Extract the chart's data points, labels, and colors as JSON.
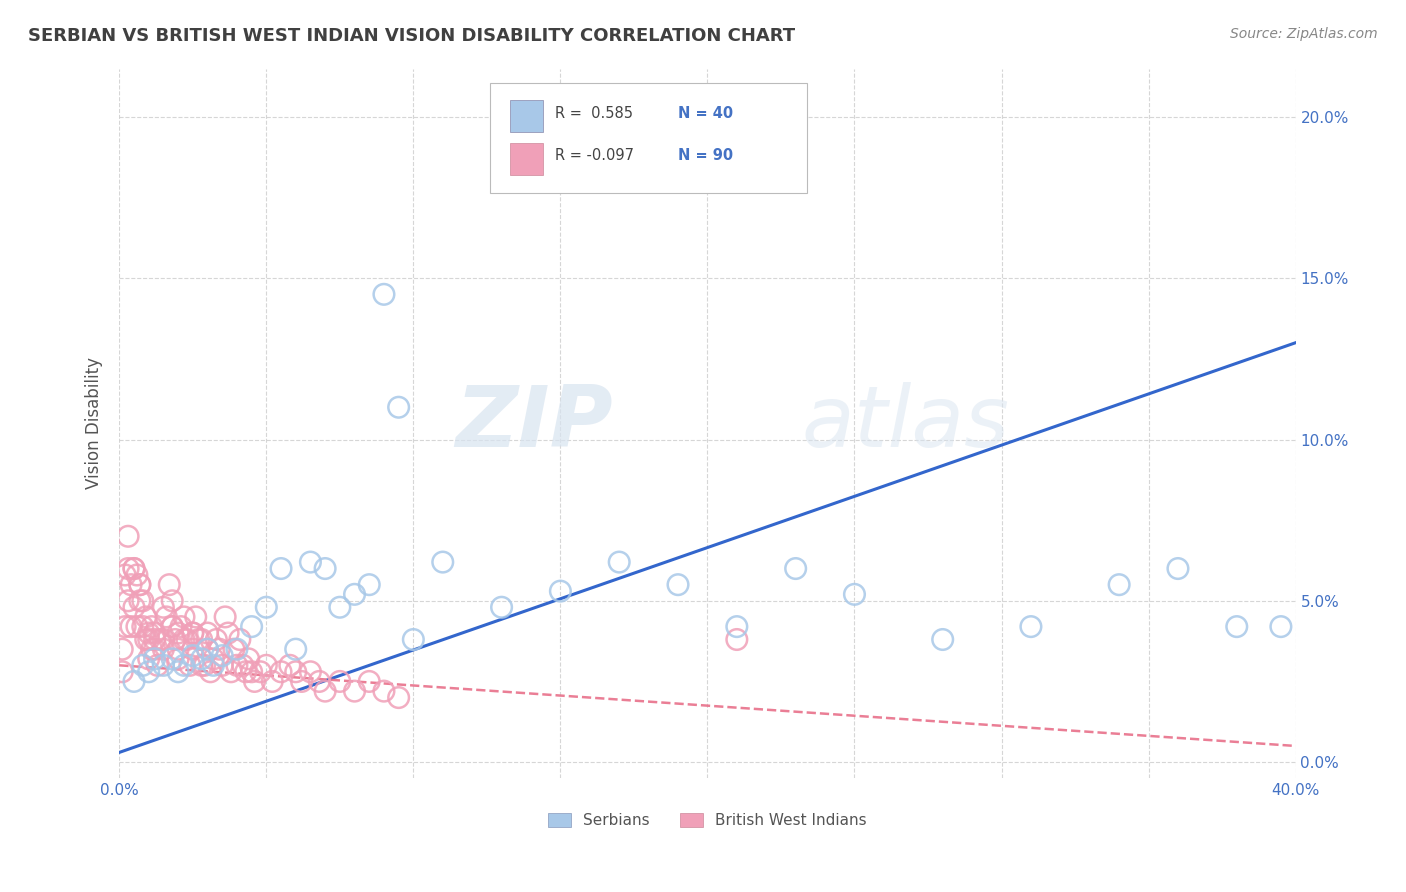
{
  "title": "SERBIAN VS BRITISH WEST INDIAN VISION DISABILITY CORRELATION CHART",
  "source": "Source: ZipAtlas.com",
  "ylabel": "Vision Disability",
  "xlim": [
    0.0,
    0.4
  ],
  "ylim": [
    -0.005,
    0.215
  ],
  "xticks": [
    0.0,
    0.05,
    0.1,
    0.15,
    0.2,
    0.25,
    0.3,
    0.35,
    0.4
  ],
  "xtick_labels": [
    "0.0%",
    "",
    "",
    "",
    "",
    "",
    "",
    "",
    "40.0%"
  ],
  "yticks": [
    0.0,
    0.05,
    0.1,
    0.15,
    0.2
  ],
  "ytick_labels_right": [
    "0.0%",
    "5.0%",
    "10.0%",
    "15.0%",
    "20.0%"
  ],
  "serbian_color": "#a8c8e8",
  "british_color": "#f0a0b8",
  "trend_serbian_color": "#3366cc",
  "trend_british_color": "#e8708a",
  "legend_serbian_label": "Serbians",
  "legend_british_label": "British West Indians",
  "R_serbian": 0.585,
  "N_serbian": 40,
  "R_british": -0.097,
  "N_british": 90,
  "serbian_x": [
    0.005,
    0.008,
    0.01,
    0.012,
    0.015,
    0.018,
    0.02,
    0.022,
    0.025,
    0.028,
    0.03,
    0.032,
    0.035,
    0.04,
    0.045,
    0.05,
    0.055,
    0.06,
    0.065,
    0.07,
    0.075,
    0.08,
    0.085,
    0.09,
    0.095,
    0.1,
    0.11,
    0.13,
    0.15,
    0.17,
    0.19,
    0.21,
    0.23,
    0.25,
    0.28,
    0.31,
    0.34,
    0.36,
    0.38,
    0.395
  ],
  "serbian_y": [
    0.025,
    0.03,
    0.028,
    0.032,
    0.03,
    0.032,
    0.028,
    0.03,
    0.033,
    0.032,
    0.035,
    0.03,
    0.033,
    0.035,
    0.042,
    0.048,
    0.06,
    0.035,
    0.062,
    0.06,
    0.048,
    0.052,
    0.055,
    0.145,
    0.11,
    0.038,
    0.062,
    0.048,
    0.053,
    0.062,
    0.055,
    0.042,
    0.06,
    0.052,
    0.038,
    0.042,
    0.055,
    0.06,
    0.042,
    0.042
  ],
  "british_x": [
    0.001,
    0.001,
    0.002,
    0.002,
    0.003,
    0.003,
    0.004,
    0.004,
    0.005,
    0.005,
    0.006,
    0.006,
    0.007,
    0.007,
    0.008,
    0.008,
    0.009,
    0.009,
    0.01,
    0.01,
    0.011,
    0.011,
    0.012,
    0.012,
    0.013,
    0.014,
    0.015,
    0.015,
    0.016,
    0.017,
    0.018,
    0.018,
    0.019,
    0.02,
    0.02,
    0.021,
    0.022,
    0.022,
    0.023,
    0.024,
    0.025,
    0.025,
    0.026,
    0.027,
    0.028,
    0.028,
    0.029,
    0.03,
    0.03,
    0.031,
    0.032,
    0.033,
    0.034,
    0.035,
    0.036,
    0.037,
    0.038,
    0.039,
    0.04,
    0.041,
    0.042,
    0.043,
    0.044,
    0.045,
    0.046,
    0.048,
    0.05,
    0.052,
    0.055,
    0.058,
    0.06,
    0.062,
    0.065,
    0.068,
    0.07,
    0.075,
    0.08,
    0.085,
    0.09,
    0.095,
    0.003,
    0.005,
    0.007,
    0.01,
    0.012,
    0.015,
    0.018,
    0.02,
    0.025,
    0.21
  ],
  "british_y": [
    0.028,
    0.035,
    0.042,
    0.058,
    0.05,
    0.06,
    0.042,
    0.055,
    0.048,
    0.06,
    0.058,
    0.042,
    0.05,
    0.055,
    0.042,
    0.05,
    0.038,
    0.045,
    0.032,
    0.038,
    0.035,
    0.042,
    0.04,
    0.038,
    0.03,
    0.038,
    0.035,
    0.048,
    0.045,
    0.055,
    0.05,
    0.042,
    0.038,
    0.032,
    0.04,
    0.042,
    0.038,
    0.045,
    0.038,
    0.03,
    0.035,
    0.04,
    0.045,
    0.038,
    0.03,
    0.038,
    0.03,
    0.035,
    0.04,
    0.028,
    0.032,
    0.038,
    0.035,
    0.03,
    0.045,
    0.04,
    0.028,
    0.035,
    0.03,
    0.038,
    0.03,
    0.028,
    0.032,
    0.028,
    0.025,
    0.028,
    0.03,
    0.025,
    0.028,
    0.03,
    0.028,
    0.025,
    0.028,
    0.025,
    0.022,
    0.025,
    0.022,
    0.025,
    0.022,
    0.02,
    0.07,
    0.06,
    0.055,
    0.04,
    0.035,
    0.038,
    0.042,
    0.035,
    0.04,
    0.038
  ],
  "serbian_trend": [
    0.0,
    0.003,
    0.4,
    0.13
  ],
  "british_trend": [
    0.0,
    0.03,
    0.4,
    0.005
  ],
  "watermark_zip": "ZIP",
  "watermark_atlas": "atlas",
  "background_color": "#ffffff",
  "grid_color": "#cccccc",
  "tick_color": "#4472c4",
  "title_color": "#404040",
  "ylabel_color": "#555555"
}
